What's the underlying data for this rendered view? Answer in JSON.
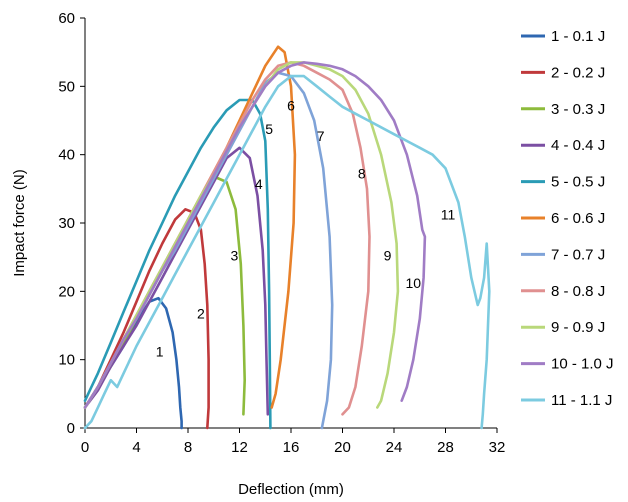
{
  "chart_data": {
    "type": "line",
    "xlabel": "Deflection (mm)",
    "ylabel": "Impact force (N)",
    "xlim": [
      0,
      32
    ],
    "ylim": [
      0,
      60
    ],
    "xticks": [
      0,
      4,
      8,
      12,
      16,
      20,
      24,
      28,
      32
    ],
    "yticks": [
      0,
      10,
      20,
      30,
      40,
      50,
      60
    ],
    "grid": false,
    "legend_position": "right",
    "series": [
      {
        "name": "1 - 0.1 J",
        "label": "1",
        "label_at": [
          5.8,
          10.5
        ],
        "color": "#2e67b1",
        "x": [
          0,
          0.5,
          1,
          2,
          3,
          4,
          5,
          5.7,
          6.3,
          6.8,
          7.1,
          7.3,
          7.4,
          7.5,
          7.5
        ],
        "y": [
          3,
          4.5,
          6,
          9,
          12,
          15.5,
          18.5,
          19,
          17.5,
          14,
          10,
          6,
          3,
          1,
          0
        ]
      },
      {
        "name": "2 - 0.2 J",
        "label": "2",
        "label_at": [
          9,
          16
        ],
        "color": "#c0393b",
        "x": [
          0,
          1,
          2,
          3,
          4,
          5,
          6,
          7,
          7.8,
          8.5,
          9,
          9.3,
          9.5,
          9.6,
          9.6,
          9.5
        ],
        "y": [
          3,
          6,
          10,
          14,
          18.5,
          23,
          27,
          30.5,
          32,
          31.5,
          29,
          24,
          18,
          10,
          3,
          0
        ]
      },
      {
        "name": "3 - 0.3 J",
        "label": "3",
        "label_at": [
          11.6,
          24.5
        ],
        "color": "#8dbb3c",
        "x": [
          0,
          1,
          2,
          3,
          4,
          5,
          6,
          7,
          8,
          9,
          10,
          11,
          11.7,
          12.1,
          12.3,
          12.4,
          12.3
        ],
        "y": [
          3,
          6,
          9,
          12.5,
          16,
          19.5,
          23,
          26.5,
          30.5,
          34,
          36.8,
          36,
          32,
          24,
          15,
          7,
          2
        ]
      },
      {
        "name": "4 - 0.4 J",
        "label": "4",
        "label_at": [
          13.5,
          35
        ],
        "color": "#7b4fa3",
        "x": [
          0,
          1,
          2,
          3,
          4,
          5,
          6,
          7,
          8,
          9,
          10,
          11,
          12,
          12.8,
          13.4,
          13.8,
          14,
          14.1,
          14.2
        ],
        "y": [
          3,
          5.5,
          9,
          12,
          15,
          18.5,
          22,
          25.5,
          29,
          32.5,
          36,
          39.5,
          41,
          39.5,
          34,
          26,
          18,
          10,
          2
        ]
      },
      {
        "name": "5 - 0.5 J",
        "label": "5",
        "label_at": [
          14.3,
          43
        ],
        "color": "#2a9bb5",
        "x": [
          0,
          0.5,
          1,
          2,
          3,
          4,
          5,
          6,
          7,
          8,
          9,
          10,
          11,
          12,
          13,
          13.6,
          14,
          14.2,
          14.3,
          14.35,
          14.4
        ],
        "y": [
          4,
          6,
          8,
          12.5,
          17,
          21.5,
          26,
          30,
          34,
          37.5,
          41,
          44,
          46.5,
          48,
          48,
          46,
          42,
          32,
          20,
          10,
          0
        ]
      },
      {
        "name": "6 - 0.6 J",
        "label": "6",
        "label_at": [
          16,
          46.5
        ],
        "color": "#e8812a",
        "x": [
          0,
          1,
          2,
          3,
          4,
          5,
          6,
          7,
          8,
          9,
          10,
          11,
          12,
          13,
          14,
          15,
          15.5,
          16,
          16.3,
          16.2,
          15.8,
          15.2,
          14.8,
          14.5
        ],
        "y": [
          3,
          6,
          9.5,
          13,
          16.5,
          20,
          23.5,
          27,
          30.5,
          34,
          37.5,
          41,
          45,
          49,
          53,
          55.8,
          55,
          50,
          40,
          30,
          20,
          10,
          5,
          3
        ]
      },
      {
        "name": "7 - 0.7 J",
        "label": "7",
        "label_at": [
          18.3,
          42
        ],
        "color": "#7fa3d8",
        "x": [
          0,
          1,
          2,
          3,
          4,
          5,
          6,
          7,
          8,
          9,
          10,
          11,
          12,
          13,
          14,
          15,
          16,
          17,
          17.8,
          18.5,
          19,
          19.2,
          19.1,
          18.8,
          18.4
        ],
        "y": [
          3,
          6,
          9.5,
          13,
          16,
          19.5,
          23,
          26,
          29.5,
          33,
          36.5,
          40,
          43.5,
          47,
          50.5,
          52,
          51.5,
          49,
          45,
          38,
          28,
          18,
          10,
          4,
          0
        ]
      },
      {
        "name": "8 - 0.8 J",
        "label": "8",
        "label_at": [
          21.5,
          36.5
        ],
        "color": "#e09090",
        "x": [
          0,
          1,
          2,
          3,
          4,
          5,
          6,
          7,
          8,
          9,
          10,
          11,
          12,
          13,
          14,
          15,
          16,
          17,
          18,
          19,
          20,
          20.8,
          21.4,
          21.9,
          22.1,
          22,
          21.5,
          21,
          20.5,
          20
        ],
        "y": [
          3,
          6,
          9.5,
          13,
          16.5,
          20,
          23.5,
          27,
          30.5,
          34,
          37.5,
          41,
          44.5,
          48,
          51,
          53,
          53.5,
          53,
          52,
          51,
          49.5,
          46,
          41,
          35,
          28,
          20,
          12,
          6,
          3,
          2
        ]
      },
      {
        "name": "9 - 0.9 J",
        "label": "9",
        "label_at": [
          23.5,
          24.5
        ],
        "color": "#b9d87a",
        "x": [
          0,
          1,
          2,
          3,
          4,
          5,
          6,
          7,
          8,
          9,
          10,
          11,
          12,
          13,
          14,
          15,
          16,
          17,
          18,
          19,
          20,
          21,
          22,
          23,
          23.8,
          24.2,
          24.3,
          24,
          23.5,
          23,
          22.7
        ],
        "y": [
          3,
          6,
          9.5,
          13,
          16.5,
          20,
          23.5,
          27,
          30.5,
          34,
          37,
          40.5,
          44,
          47,
          50,
          52.5,
          53.5,
          53.5,
          53,
          52.5,
          51.5,
          49.5,
          46,
          40,
          33,
          27,
          20,
          14,
          8,
          4,
          3
        ]
      },
      {
        "name": "10 - 1.0 J",
        "label": "10",
        "label_at": [
          25.5,
          20.5
        ],
        "color": "#a07cc5",
        "x": [
          0,
          1,
          2,
          3,
          4,
          5,
          6,
          7,
          8,
          9,
          10,
          11,
          12,
          13,
          14,
          15,
          16,
          17,
          18,
          19,
          20,
          21,
          22,
          23,
          24,
          25,
          25.8,
          26.2,
          26.4,
          26.3,
          26,
          25.5,
          25,
          24.6
        ],
        "y": [
          3,
          6,
          9.5,
          13,
          16,
          19.5,
          23,
          26.5,
          30,
          33.5,
          37,
          40.5,
          44,
          47,
          50,
          52,
          53,
          53.5,
          53.3,
          53,
          52.5,
          51.5,
          50,
          48,
          45,
          40,
          34,
          29,
          28,
          22,
          16,
          10,
          6,
          4
        ]
      },
      {
        "name": "11 - 1.1 J",
        "label": "11",
        "label_at": [
          28.2,
          30.5
        ],
        "color": "#7ccbe0",
        "x": [
          0,
          0.5,
          1,
          1.5,
          2,
          2.5,
          3,
          4,
          5,
          6,
          7,
          8,
          9,
          10,
          11,
          12,
          13,
          14,
          15,
          16,
          17,
          18,
          19,
          20,
          21,
          22,
          23,
          24,
          25,
          26,
          27,
          28,
          29,
          29.5,
          30,
          30.5,
          30.7,
          31,
          31.2,
          31.4,
          31.2,
          31,
          30.9,
          30.8
        ],
        "y": [
          0,
          1,
          3,
          5,
          7,
          6,
          8,
          12,
          15.5,
          19,
          22.5,
          26,
          29.5,
          33,
          36.5,
          40,
          43.5,
          47,
          50,
          51.5,
          51.5,
          50,
          48.5,
          47,
          46,
          45,
          44,
          43,
          42,
          41,
          40,
          38,
          33,
          28,
          22,
          18,
          19,
          22,
          27,
          20,
          10,
          5,
          2,
          0
        ]
      }
    ]
  }
}
